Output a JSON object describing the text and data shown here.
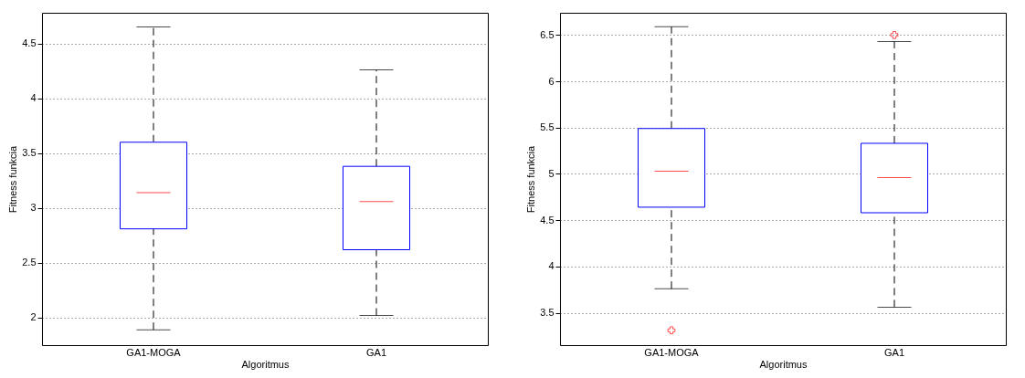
{
  "chart_data": [
    {
      "type": "box",
      "xlabel": "Algoritmus",
      "ylabel": "Fitness funkcia",
      "categories": [
        "GA1-MOGA",
        "GA1"
      ],
      "ylim": [
        1.75,
        4.78
      ],
      "yticks": [
        2,
        2.5,
        3,
        3.5,
        4,
        4.5
      ],
      "grid": "y",
      "series": [
        {
          "color": "#0000ff",
          "boxes": [
            {
              "low": 1.89,
              "q1": 2.81,
              "median": 3.14,
              "q3": 3.6,
              "high": 4.65
            },
            {
              "low": 2.02,
              "q1": 2.62,
              "median": 3.06,
              "q3": 3.38,
              "high": 4.26
            }
          ]
        }
      ]
    },
    {
      "type": "box",
      "xlabel": "Algoritmus",
      "ylabel": "Fitness funkcia",
      "categories": [
        "GA1-MOGA",
        "GA1"
      ],
      "ylim": [
        3.15,
        6.74
      ],
      "yticks": [
        3.5,
        4,
        4.5,
        5,
        5.5,
        6,
        6.5
      ],
      "grid": "y",
      "marker": "cross",
      "series": [
        {
          "color": "#0000ff",
          "boxes": [
            {
              "low": 3.76,
              "q1": 4.64,
              "median": 5.03,
              "q3": 5.49,
              "high": 6.59,
              "outliers": [
                3.31
              ]
            },
            {
              "low": 3.56,
              "q1": 4.58,
              "median": 4.96,
              "q3": 5.33,
              "high": 6.43,
              "outliers": [
                6.5
              ]
            }
          ]
        }
      ]
    }
  ]
}
